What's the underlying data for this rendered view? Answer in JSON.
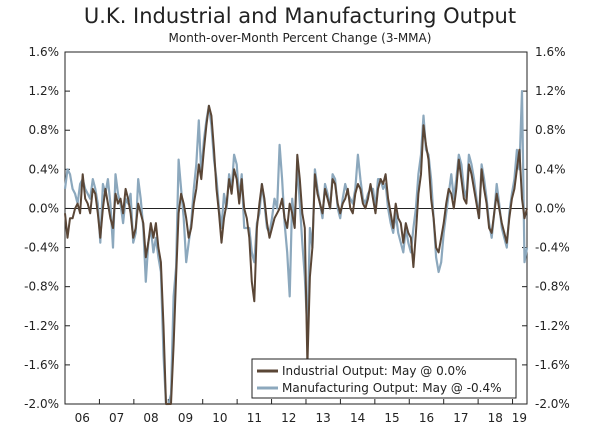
{
  "chart_data": {
    "type": "line",
    "title": "U.K. Industrial and Manufacturing Output",
    "subtitle": "Month-over-Month Percent Change (3-MMA)",
    "xlabel": "",
    "ylabel": "",
    "xlim": [
      2006.0,
      2019.42
    ],
    "ylim": [
      -2.0,
      1.6
    ],
    "y_ticks": [
      -2.0,
      -1.6,
      -1.2,
      -0.8,
      -0.4,
      0.0,
      0.4,
      0.8,
      1.2,
      1.6
    ],
    "y_tick_labels": [
      "-2.0%",
      "-1.6%",
      "-1.2%",
      "-0.8%",
      "-0.4%",
      "0.0%",
      "0.4%",
      "0.8%",
      "1.2%",
      "1.6%"
    ],
    "x_tick_labels": [
      "06",
      "07",
      "08",
      "09",
      "10",
      "11",
      "12",
      "13",
      "14",
      "15",
      "16",
      "17",
      "18",
      "19"
    ],
    "grid": false,
    "legend_position": "bottom-right",
    "colors": {
      "industrial": "#5a4636",
      "manufacturing": "#8ca8bd",
      "axis": "#222222"
    },
    "series": [
      {
        "name": "Industrial Output: May @ 0.0%",
        "color": "#5a4636",
        "values": [
          -0.05,
          -0.3,
          -0.1,
          -0.1,
          0.0,
          0.05,
          -0.05,
          0.35,
          0.1,
          0.05,
          -0.05,
          0.2,
          0.15,
          -0.05,
          -0.3,
          0.0,
          0.2,
          0.05,
          -0.1,
          -0.2,
          0.15,
          0.05,
          0.1,
          -0.05,
          0.2,
          0.1,
          -0.05,
          -0.3,
          -0.2,
          0.05,
          -0.05,
          -0.15,
          -0.5,
          -0.35,
          -0.15,
          -0.3,
          -0.15,
          -0.4,
          -0.55,
          -1.2,
          -2.0,
          -2.0,
          -2.0,
          -1.4,
          -0.7,
          -0.05,
          0.15,
          0.05,
          -0.1,
          -0.3,
          -0.2,
          0.05,
          0.2,
          0.45,
          0.3,
          0.6,
          0.85,
          1.05,
          0.95,
          0.6,
          0.2,
          -0.05,
          -0.35,
          -0.1,
          0.05,
          0.3,
          0.15,
          0.4,
          0.3,
          0.05,
          0.3,
          0.0,
          -0.1,
          -0.3,
          -0.75,
          -0.95,
          -0.2,
          0.05,
          0.25,
          0.1,
          -0.15,
          -0.3,
          -0.2,
          -0.1,
          -0.05,
          0.0,
          0.1,
          -0.1,
          -0.2,
          0.05,
          -0.05,
          -0.2,
          0.55,
          0.3,
          -0.05,
          -0.2,
          -1.6,
          -0.7,
          -0.4,
          0.35,
          0.15,
          0.05,
          -0.05,
          0.2,
          0.1,
          0.0,
          0.3,
          0.25,
          0.05,
          -0.05,
          0.05,
          0.1,
          0.2,
          0.0,
          -0.05,
          0.15,
          0.25,
          0.2,
          0.05,
          0.0,
          0.1,
          0.25,
          0.1,
          -0.05,
          0.2,
          0.3,
          0.25,
          0.35,
          0.1,
          -0.05,
          -0.2,
          0.05,
          -0.1,
          -0.15,
          -0.35,
          -0.15,
          -0.25,
          -0.3,
          -0.6,
          -0.25,
          0.15,
          0.35,
          0.85,
          0.65,
          0.5,
          0.1,
          -0.1,
          -0.4,
          -0.45,
          -0.3,
          -0.15,
          0.05,
          0.2,
          0.15,
          0.0,
          0.2,
          0.5,
          0.3,
          0.1,
          0.05,
          0.45,
          0.35,
          0.2,
          0.05,
          -0.1,
          0.4,
          0.2,
          0.05,
          -0.2,
          -0.25,
          -0.05,
          0.15,
          0.0,
          -0.15,
          -0.25,
          -0.35,
          -0.1,
          0.1,
          0.2,
          0.4,
          0.6,
          0.1,
          -0.1,
          0.0
        ]
      },
      {
        "name": "Manufacturing Output: May @ -0.4%",
        "color": "#8ca8bd",
        "values": [
          0.2,
          0.4,
          0.35,
          0.2,
          0.15,
          0.05,
          0.25,
          0.3,
          0.2,
          0.15,
          0.1,
          0.3,
          0.2,
          0.05,
          -0.35,
          0.25,
          0.15,
          0.3,
          0.05,
          -0.4,
          0.35,
          0.15,
          0.05,
          -0.15,
          0.1,
          0.05,
          0.15,
          -0.35,
          -0.25,
          0.3,
          0.1,
          -0.2,
          -0.75,
          -0.35,
          -0.2,
          -0.45,
          -0.3,
          -0.5,
          -0.65,
          -1.5,
          -2.0,
          -2.0,
          -1.9,
          -0.9,
          -0.6,
          0.5,
          0.2,
          -0.1,
          -0.55,
          -0.35,
          -0.15,
          0.2,
          0.45,
          0.9,
          0.35,
          0.7,
          0.9,
          1.05,
          0.85,
          0.5,
          0.3,
          0.0,
          -0.2,
          0.15,
          0.0,
          0.35,
          0.2,
          0.55,
          0.45,
          0.1,
          0.35,
          -0.2,
          -0.2,
          -0.2,
          -0.45,
          -0.55,
          -0.15,
          -0.05,
          0.25,
          0.05,
          -0.2,
          -0.25,
          -0.1,
          0.1,
          0.0,
          0.65,
          0.3,
          -0.15,
          -0.45,
          -0.9,
          0.1,
          -0.15,
          0.45,
          0.05,
          -0.35,
          -0.7,
          -1.25,
          -0.2,
          -0.4,
          0.4,
          0.2,
          0.05,
          -0.1,
          0.25,
          0.15,
          0.0,
          0.35,
          0.3,
          0.0,
          -0.1,
          0.1,
          0.25,
          0.15,
          0.1,
          0.05,
          0.2,
          0.55,
          0.3,
          0.1,
          0.05,
          0.15,
          0.2,
          0.2,
          0.0,
          0.3,
          0.3,
          0.2,
          0.25,
          0.0,
          -0.15,
          -0.25,
          -0.05,
          -0.25,
          -0.35,
          -0.45,
          -0.2,
          -0.35,
          -0.45,
          -0.2,
          0.0,
          0.35,
          0.55,
          0.95,
          0.6,
          0.55,
          0.3,
          -0.1,
          -0.5,
          -0.65,
          -0.55,
          -0.25,
          -0.05,
          0.15,
          0.35,
          0.1,
          0.3,
          0.55,
          0.45,
          0.2,
          0.1,
          0.55,
          0.45,
          0.3,
          0.1,
          -0.1,
          0.45,
          0.3,
          0.1,
          -0.15,
          -0.3,
          -0.05,
          0.25,
          0.05,
          -0.2,
          -0.3,
          -0.4,
          -0.05,
          0.15,
          0.3,
          0.6,
          0.4,
          1.2,
          -0.55,
          -0.4
        ]
      }
    ]
  }
}
